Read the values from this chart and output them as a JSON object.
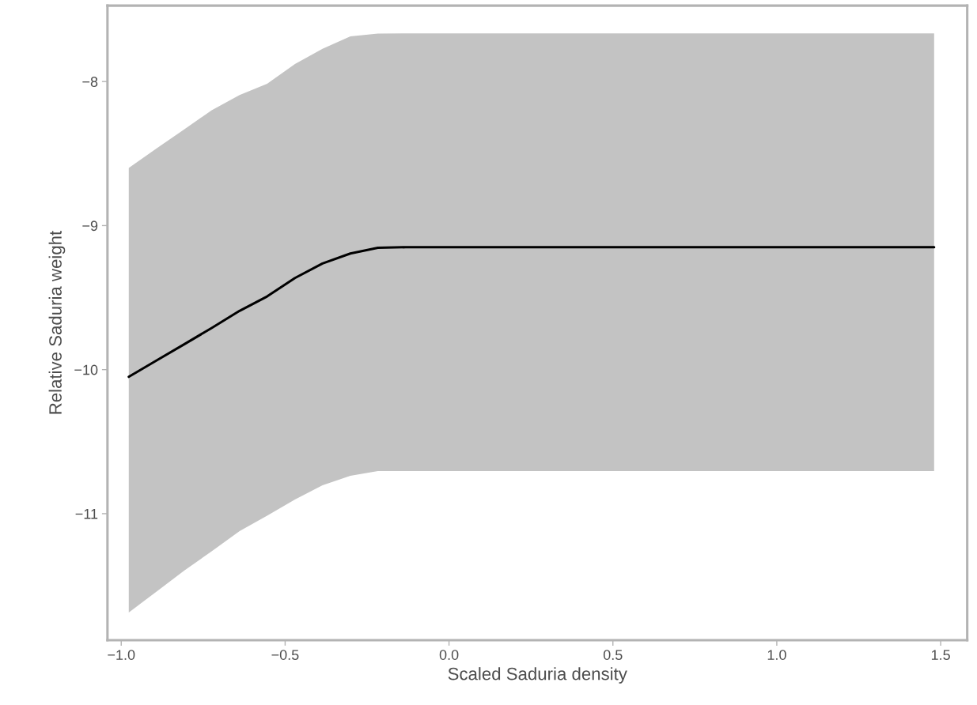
{
  "chart_data": {
    "type": "line",
    "xlabel": "Scaled Saduria density",
    "ylabel": "Relative Saduria weight",
    "x": [
      -0.977,
      -0.893,
      -0.808,
      -0.724,
      -0.639,
      -0.555,
      -0.47,
      -0.386,
      -0.301,
      -0.217,
      -0.132,
      1.48
    ],
    "series": [
      {
        "color": "#000000",
        "values": [
          -10.05,
          -9.937,
          -9.824,
          -9.711,
          -9.592,
          -9.492,
          -9.364,
          -9.263,
          -9.194,
          -9.154,
          -9.15,
          -9.15
        ],
        "lower": [
          -11.686,
          -11.542,
          -11.395,
          -11.261,
          -11.121,
          -11.014,
          -10.902,
          -10.803,
          -10.737,
          -10.704,
          -10.704,
          -10.704
        ],
        "upper": [
          -8.6,
          -8.466,
          -8.332,
          -8.199,
          -8.093,
          -8.016,
          -7.878,
          -7.773,
          -7.686,
          -7.667,
          -7.665,
          -7.665
        ]
      }
    ],
    "xlim": [
      -1.042,
      1.581
    ],
    "ylim": [
      -11.878,
      -7.473
    ],
    "xticks": [
      {
        "value": -1.0,
        "label": "−1.0"
      },
      {
        "value": -0.5,
        "label": "−0.5"
      },
      {
        "value": 0.0,
        "label": "0.0"
      },
      {
        "value": 0.5,
        "label": "0.5"
      },
      {
        "value": 1.0,
        "label": "1.0"
      },
      {
        "value": 1.5,
        "label": "1.5"
      }
    ],
    "yticks": [
      {
        "value": -11,
        "label": "−11"
      },
      {
        "value": -10,
        "label": "−10"
      },
      {
        "value": -9,
        "label": "−9"
      },
      {
        "value": -8,
        "label": "−8"
      }
    ],
    "grid": false,
    "legend": false
  }
}
